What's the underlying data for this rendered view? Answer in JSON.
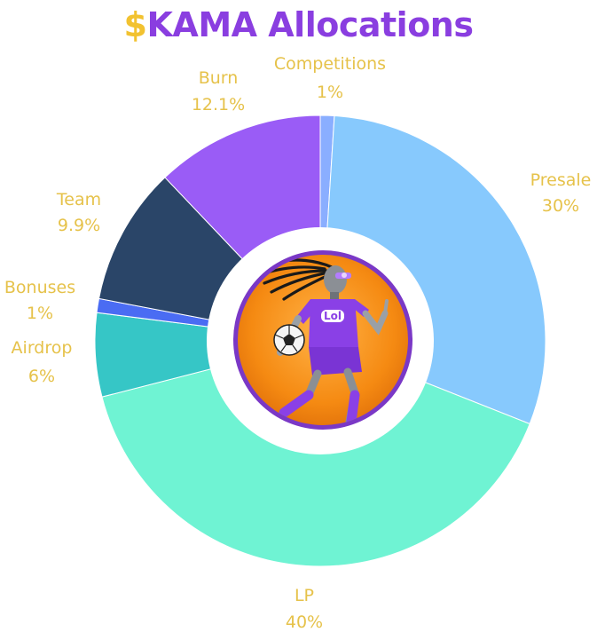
{
  "header": {
    "title_symbol": "$",
    "title_text": "KAMA Allocations"
  },
  "colors": {
    "title_symbol": "#f2c230",
    "title_text": "#8a3ee0",
    "label": "#e6c24a"
  },
  "center_image": {
    "icon": "robot-soccer-player-mascot",
    "badge_text": "Lol"
  },
  "chart_data": {
    "type": "pie",
    "donut": true,
    "start": "12 o'clock, clockwise",
    "slices": [
      {
        "label": "Competitions",
        "value": 1,
        "value_label": "1%",
        "color": "#8aaeff"
      },
      {
        "label": "Presale",
        "value": 30,
        "value_label": "30%",
        "color": "#87c9fd"
      },
      {
        "label": "LP",
        "value": 40,
        "value_label": "40%",
        "color": "#6ff3d3"
      },
      {
        "label": "Airdrop",
        "value": 6,
        "value_label": "6%",
        "color": "#36c6c6"
      },
      {
        "label": "Bonuses",
        "value": 1,
        "value_label": "1%",
        "color": "#4a6cf3"
      },
      {
        "label": "Team",
        "value": 9.9,
        "value_label": "9.9%",
        "color": "#2a4568"
      },
      {
        "label": "Burn",
        "value": 12.1,
        "value_label": "12.1%",
        "color": "#9a5cf6"
      }
    ]
  }
}
